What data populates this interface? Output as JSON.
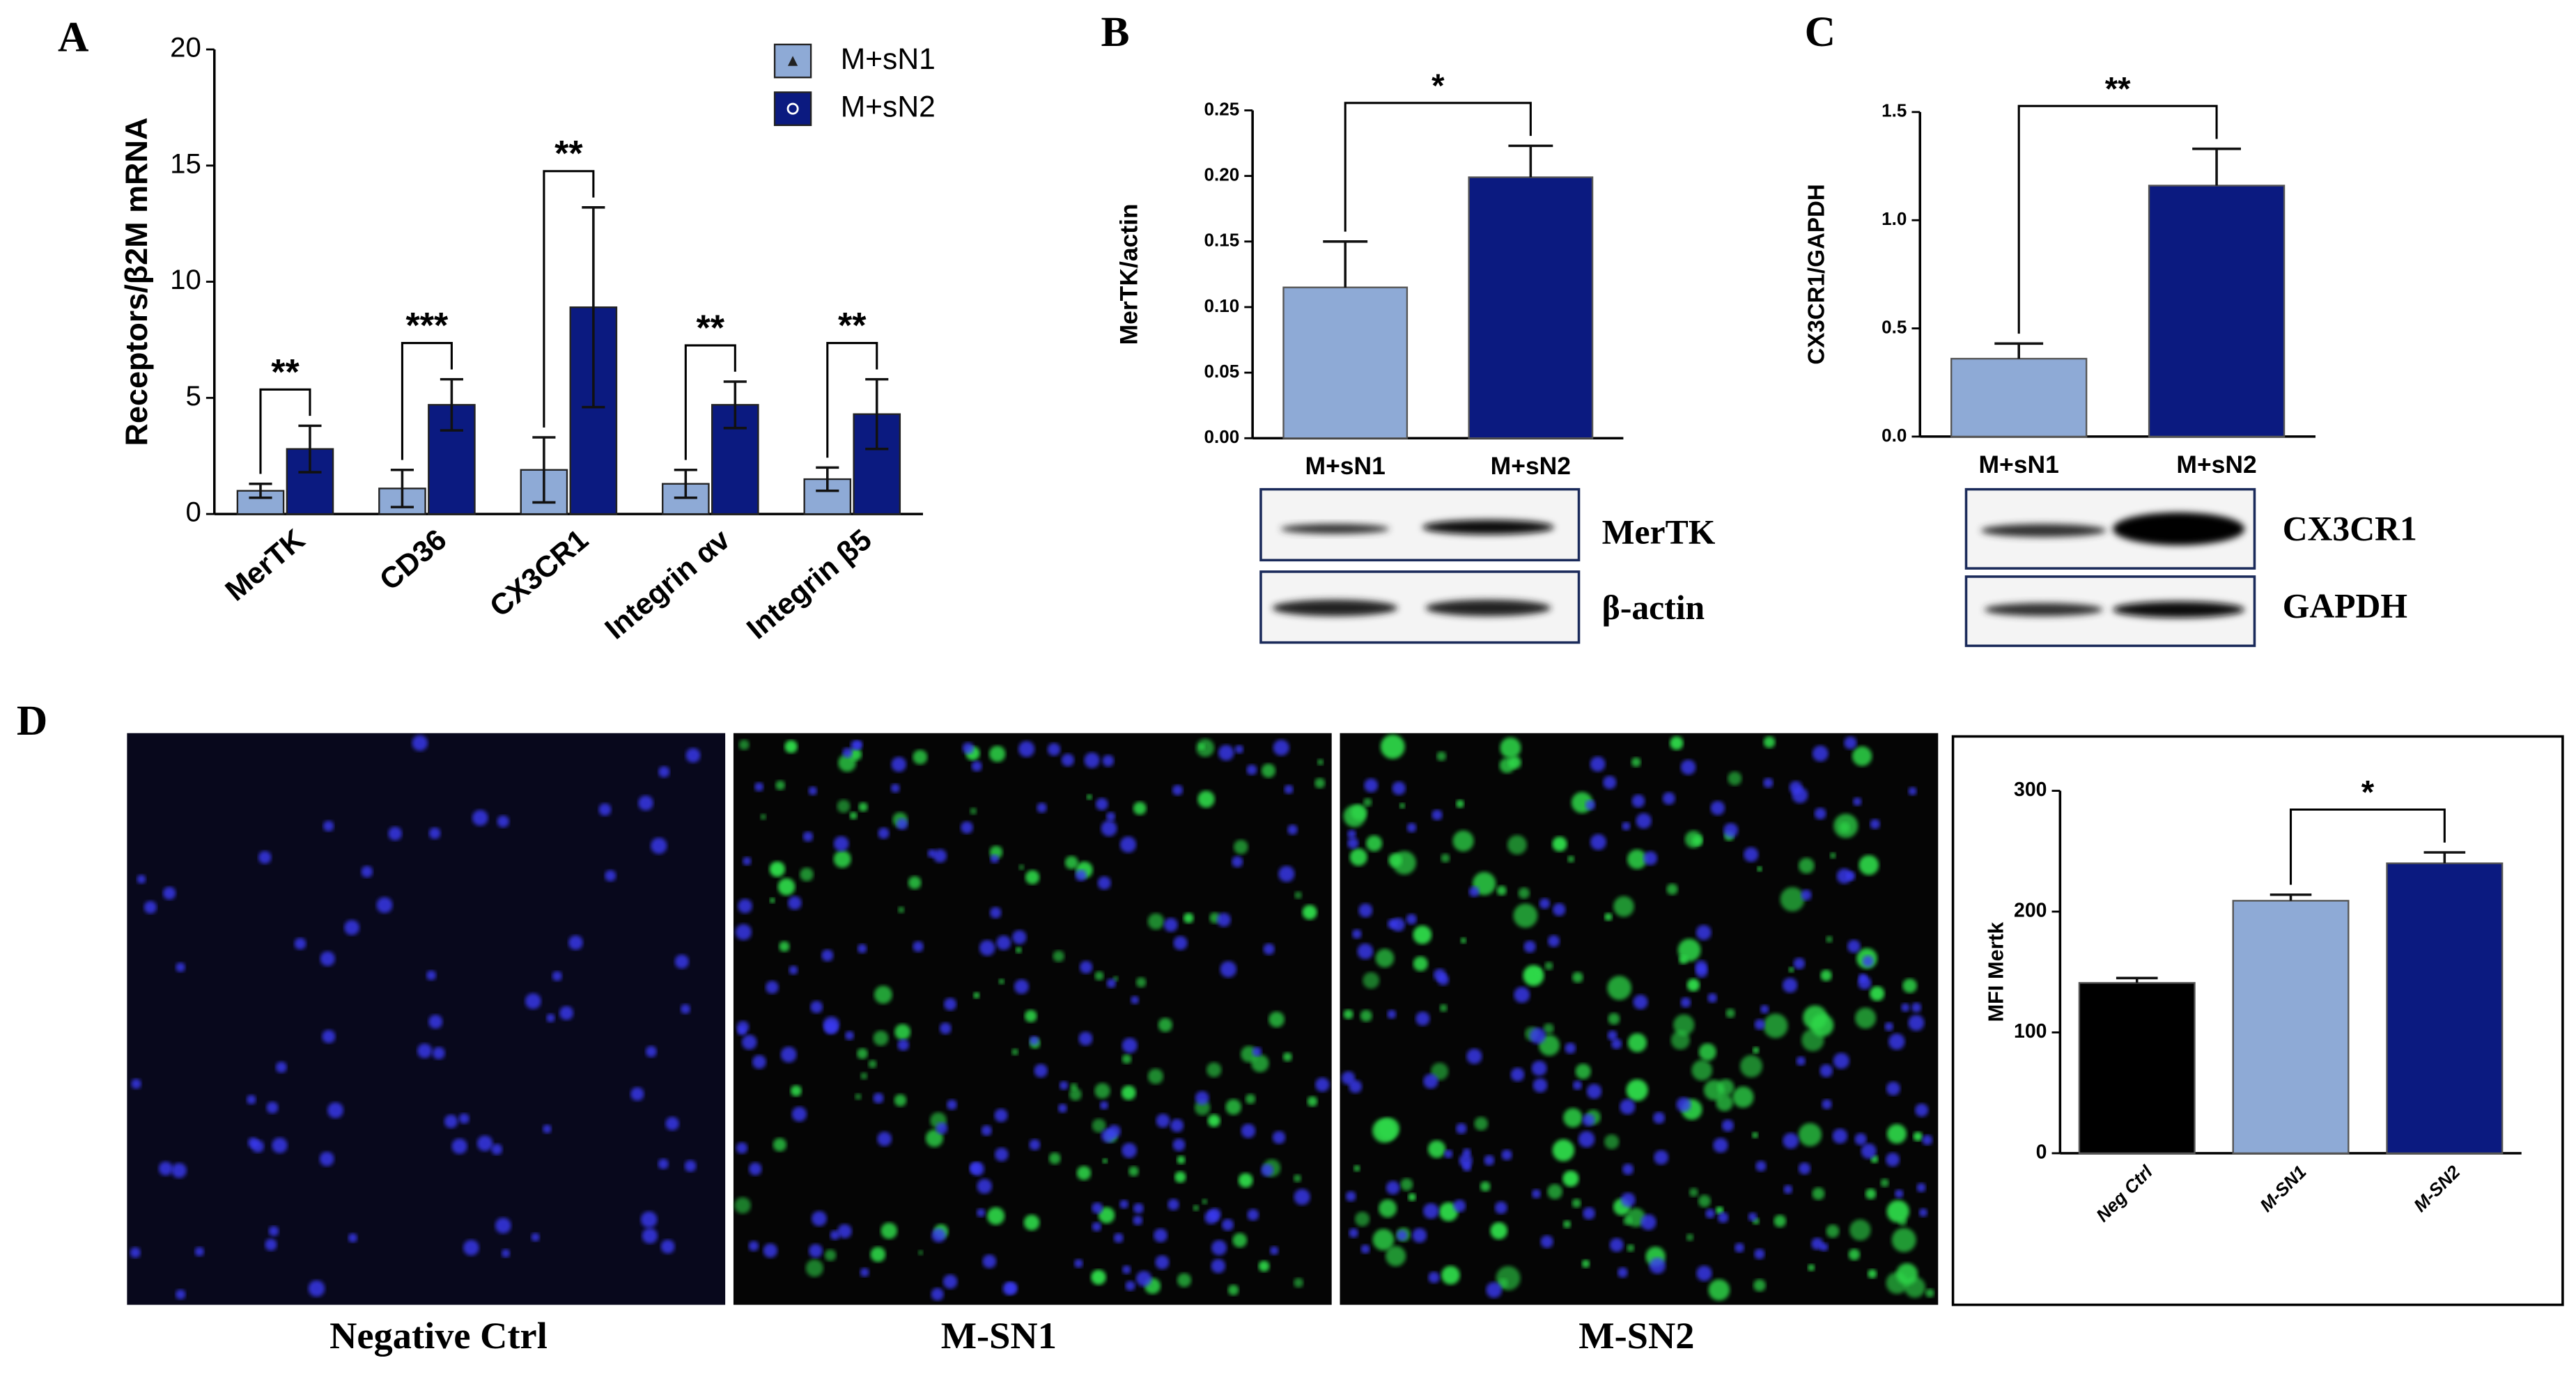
{
  "panel_labels": [
    "A",
    "B",
    "C",
    "D"
  ],
  "chart_data": [
    {
      "type": "bar",
      "y_label": "Receptors/β2M mRNA",
      "categories": [
        "MerTK",
        "CD36",
        "CX3CR1",
        "Integrin αv",
        "Integrin β5"
      ],
      "series": [
        {
          "name": "M+sN1",
          "color": "#8eaad6",
          "values": [
            1.0,
            1.1,
            1.9,
            1.3,
            1.5
          ],
          "errors": [
            0.3,
            0.8,
            1.4,
            0.6,
            0.5
          ]
        },
        {
          "name": "M+sN2",
          "color": "#0b1a80",
          "values": [
            2.8,
            4.7,
            8.9,
            4.7,
            4.3
          ],
          "errors": [
            1.0,
            1.1,
            4.3,
            1.0,
            1.5
          ]
        }
      ],
      "annotations": [
        "**",
        "***",
        "**",
        "**",
        "**"
      ],
      "ylim": [
        0,
        20
      ],
      "yticks": [
        0,
        5,
        10,
        15,
        20
      ]
    },
    {
      "type": "bar",
      "y_label": "MerTK/actin",
      "categories": [
        "M+sN1",
        "M+sN2"
      ],
      "values": [
        0.115,
        0.199
      ],
      "errors": [
        0.035,
        0.024
      ],
      "colors": [
        "#8eaad6",
        "#0b1a80"
      ],
      "annotations": [
        "*"
      ],
      "ylim": [
        0,
        0.25
      ],
      "yticks": [
        {
          "value": 0,
          "label": "0.00"
        },
        {
          "value": 0.05,
          "label": "0.05"
        },
        {
          "value": 0.1,
          "label": "0.10"
        },
        {
          "value": 0.15,
          "label": "0.15"
        },
        {
          "value": 0.2,
          "label": "0.20"
        },
        {
          "value": 0.25,
          "label": "0.25"
        }
      ]
    },
    {
      "type": "bar",
      "y_label": "CX3CR1/GAPDH",
      "categories": [
        "M+sN1",
        "M+sN2"
      ],
      "values": [
        0.36,
        1.16
      ],
      "errors": [
        0.07,
        0.17
      ],
      "colors": [
        "#8eaad6",
        "#0b1a80"
      ],
      "annotations": [
        "**"
      ],
      "ylim": [
        0,
        1.5
      ],
      "yticks": [
        {
          "value": 0,
          "label": "0.0"
        },
        0.5,
        {
          "value": 1,
          "label": "1.0"
        },
        1.5
      ]
    },
    {
      "type": "bar",
      "y_label": "MFI Mertk",
      "categories": [
        "Neg Ctrl",
        "M-SN1",
        "M-SN2"
      ],
      "values": [
        141,
        209,
        240
      ],
      "errors": [
        4,
        5,
        9
      ],
      "colors": [
        "#000000",
        "#8eaad6",
        "#0b1a80"
      ],
      "annotations": [
        "*"
      ],
      "ylim": [
        0,
        300
      ],
      "yticks": [
        0,
        100,
        200,
        300
      ]
    }
  ],
  "blots": [
    {
      "labels": [
        "MerTK",
        "β-actin"
      ]
    },
    {
      "labels": [
        "CX3CR1",
        "GAPDH"
      ]
    }
  ],
  "micrographs": {
    "captions": [
      "Negative Ctrl",
      "M-SN1",
      "M-SN2"
    ]
  }
}
